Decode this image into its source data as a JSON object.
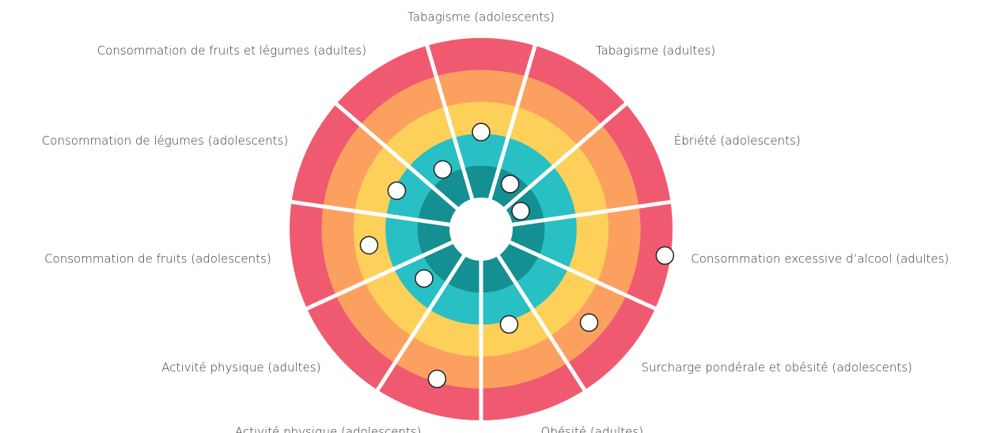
{
  "chart_data": {
    "type": "radial-dot",
    "categories": [
      "Tabagisme (adolescents)",
      "Tabagisme (adultes)",
      "Ébriété (adolescents)",
      "Consommation excessive d’alcool (adultes)",
      "Surcharge pondérale et obésité (adolescents)",
      "Obésité (adultes)",
      "Activité physique (adolescents)",
      "Activité physique (adultes)",
      "Consommation de fruits (adolescents)",
      "Consommation de légumes (adolescents)",
      "Consommation de fruits et légumes (adultes)"
    ],
    "values": [
      2.05,
      0.69,
      0.37,
      4.82,
      3.48,
      2.12,
      3.9,
      1.37,
      2.55,
      1.91,
      1.23
    ],
    "rlim": [
      0,
      5
    ],
    "band_colors": [
      "#148f92",
      "#28c0c4",
      "#fdd05a",
      "#fca060",
      "#f05a70"
    ],
    "marker_color": "#ffffff"
  }
}
